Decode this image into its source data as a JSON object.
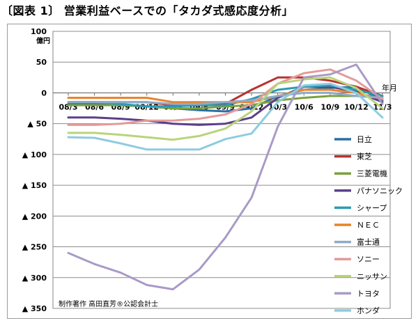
{
  "title": "〔図表 1〕 営業利益ベースでの「タカダ式感応度分析」",
  "chart_data": {
    "type": "line",
    "title": "〔図表 1〕 営業利益ベースでの「タカダ式感応度分析」",
    "ylabel": "億円",
    "xlabel": "年月",
    "ylim": [
      -350,
      100
    ],
    "yticks": [
      100,
      50,
      0,
      -50,
      -100,
      -150,
      -200,
      -250,
      -300,
      -350
    ],
    "ytick_labels": [
      "100",
      "50",
      "0",
      "▲ 50",
      "▲ 100",
      "▲ 150",
      "▲ 200",
      "▲ 250",
      "▲ 300",
      "▲ 350"
    ],
    "categories": [
      "08/3",
      "08/6",
      "08/9",
      "08/12",
      "09/3",
      "09/6",
      "09/9",
      "09/12",
      "10/3",
      "10/6",
      "10/9",
      "10/12",
      "11/3"
    ],
    "legend_position": "right",
    "grid": true,
    "annotation": "制作著作 高田直芳®公認会計士",
    "series": [
      {
        "name": "日立",
        "color": "#2e6da4",
        "values": [
          -18,
          -18,
          -20,
          -22,
          -25,
          -28,
          -30,
          -25,
          -5,
          5,
          8,
          10,
          -12
        ]
      },
      {
        "name": "東芝",
        "color": "#b83232",
        "values": [
          -15,
          -15,
          -15,
          -15,
          -20,
          -18,
          -18,
          5,
          25,
          25,
          20,
          10,
          -5
        ]
      },
      {
        "name": "三菱電機",
        "color": "#7aa23c",
        "values": [
          -20,
          -20,
          -20,
          -22,
          -25,
          -25,
          -22,
          -20,
          -12,
          -8,
          -5,
          -5,
          -8
        ]
      },
      {
        "name": "パナソニック",
        "color": "#5b3f8a",
        "values": [
          -40,
          -40,
          -42,
          -45,
          -50,
          -52,
          -50,
          -40,
          -8,
          10,
          10,
          2,
          -15
        ]
      },
      {
        "name": "シャープ",
        "color": "#2a9bb5",
        "values": [
          -15,
          -15,
          -18,
          -22,
          -22,
          -20,
          -20,
          -10,
          5,
          10,
          12,
          5,
          -5
        ]
      },
      {
        "name": "ＮＥＣ",
        "color": "#e8842a",
        "values": [
          -8,
          -8,
          -8,
          -8,
          -15,
          -15,
          -15,
          -15,
          -5,
          5,
          5,
          0,
          -10
        ]
      },
      {
        "name": "富士通",
        "color": "#8eaacb",
        "values": [
          -15,
          -15,
          -15,
          -15,
          -18,
          -18,
          -15,
          -12,
          -5,
          0,
          0,
          -5,
          -8
        ]
      },
      {
        "name": "ソニー",
        "color": "#e39b98",
        "values": [
          -52,
          -52,
          -50,
          -45,
          -45,
          -42,
          -35,
          -18,
          15,
          32,
          38,
          20,
          -10
        ]
      },
      {
        "name": "ニッサン",
        "color": "#b9d47a",
        "values": [
          -65,
          -65,
          -68,
          -72,
          -76,
          -70,
          -58,
          -30,
          15,
          22,
          25,
          8,
          -25
        ]
      },
      {
        "name": "トヨタ",
        "color": "#a99ac6",
        "values": [
          -260,
          -278,
          -292,
          -312,
          -319,
          -287,
          -235,
          -170,
          -55,
          25,
          30,
          46,
          -18
        ]
      },
      {
        "name": "ホンダ",
        "color": "#8ecbe0",
        "values": [
          -72,
          -73,
          -82,
          -92,
          -92,
          -92,
          -75,
          -66,
          -15,
          12,
          15,
          0,
          -40
        ]
      }
    ]
  }
}
